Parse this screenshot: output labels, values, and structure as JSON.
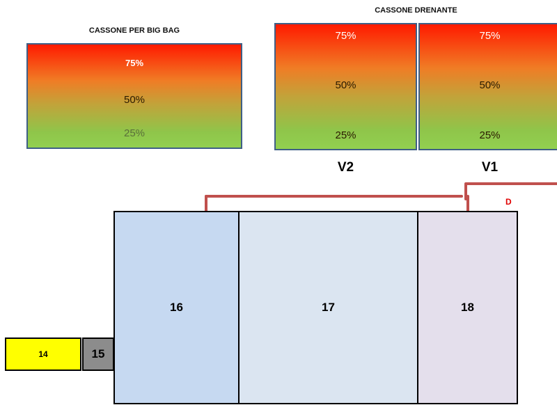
{
  "bigbag": {
    "title": "CASSONE PER BIG BAG",
    "levels": [
      "75%",
      "50%",
      "25%"
    ]
  },
  "drenante": {
    "title": "CASSONE DRENANTE",
    "tanks": [
      {
        "label": "V2",
        "levels": [
          "75%",
          "50%",
          "25%"
        ]
      },
      {
        "label": "V1",
        "levels": [
          "75%",
          "50%",
          "25%"
        ]
      }
    ]
  },
  "zones": [
    "16",
    "17",
    "18"
  ],
  "small_boxes": [
    "14",
    "15"
  ],
  "marker": "D",
  "colors": {
    "gradient_top": "#ff1a00",
    "gradient_bottom": "#92d050",
    "tank_border": "#3f5f86",
    "arrow": "#c0504d",
    "zone_16": "#c6d9f1",
    "zone_17": "#dbe5f1",
    "zone_18": "#e4dfec",
    "box_14": "#ffff00",
    "box_15": "#8c8c8c"
  }
}
